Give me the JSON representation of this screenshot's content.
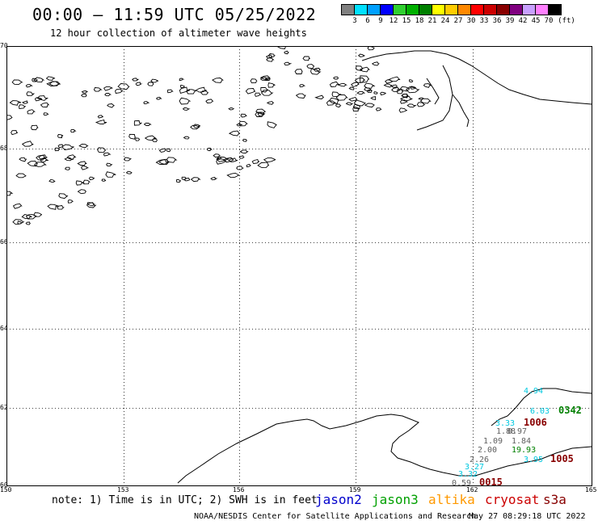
{
  "title": "00:00 – 11:59 UTC 05/25/2022",
  "subtitle": "12 hour collection of altimeter wave heights",
  "legend": {
    "colors": [
      "#808080",
      "#00e0ff",
      "#00a0ff",
      "#0000ff",
      "#30d030",
      "#00b000",
      "#008000",
      "#ffff00",
      "#ffcc00",
      "#ff8800",
      "#ff0000",
      "#cc0000",
      "#880000",
      "#800080",
      "#c8a0ff",
      "#ff80ff",
      "#000000"
    ],
    "labels": [
      "3",
      "6",
      "9",
      "12",
      "15",
      "18",
      "21",
      "24",
      "27",
      "30",
      "33",
      "36",
      "39",
      "42",
      "45",
      "70"
    ],
    "unit": "(ft)"
  },
  "axes": {
    "lat_labels": [
      "70",
      "68",
      "66",
      "64",
      "62",
      "60"
    ],
    "lon_labels": [
      "150",
      "153",
      "156",
      "159",
      "162",
      "165"
    ]
  },
  "measurements": [
    {
      "text": "4.94",
      "color": "#00c8e0"
    },
    {
      "text": "6.03",
      "color": "#00c8e0"
    },
    {
      "text": "0342",
      "color": "#008000"
    },
    {
      "text": "3.33",
      "color": "#00c8e0"
    },
    {
      "text": "1006",
      "color": "#880000"
    },
    {
      "text": "1.88",
      "color": "#606060"
    },
    {
      "text": "0.97",
      "color": "#606060"
    },
    {
      "text": "1.09",
      "color": "#606060"
    },
    {
      "text": "1.84",
      "color": "#606060"
    },
    {
      "text": "2.00",
      "color": "#606060"
    },
    {
      "text": "19.93",
      "color": "#008000"
    },
    {
      "text": "2.26",
      "color": "#606060"
    },
    {
      "text": "3.95",
      "color": "#00c8e0"
    },
    {
      "text": "1005",
      "color": "#880000"
    },
    {
      "text": "3.27",
      "color": "#00c8e0"
    },
    {
      "text": "3.32",
      "color": "#00c8e0"
    },
    {
      "text": "0.59",
      "color": "#606060"
    },
    {
      "text": "0015",
      "color": "#880000"
    }
  ],
  "note": "note:  1) Time is in UTC; 2) SWH is in feet",
  "satellites": [
    {
      "name": "jason2",
      "color": "#0000cc"
    },
    {
      "name": "jason3",
      "color": "#00a000"
    },
    {
      "name": "altika",
      "color": "#ff9900"
    },
    {
      "name": "cryosat",
      "color": "#cc0000"
    },
    {
      "name": "s3a",
      "color": "#880000"
    }
  ],
  "credit": "NOAA/NESDIS Center for Satellite Applications and Research",
  "timestamp": "May 27 08:29:18 UTC 2022"
}
